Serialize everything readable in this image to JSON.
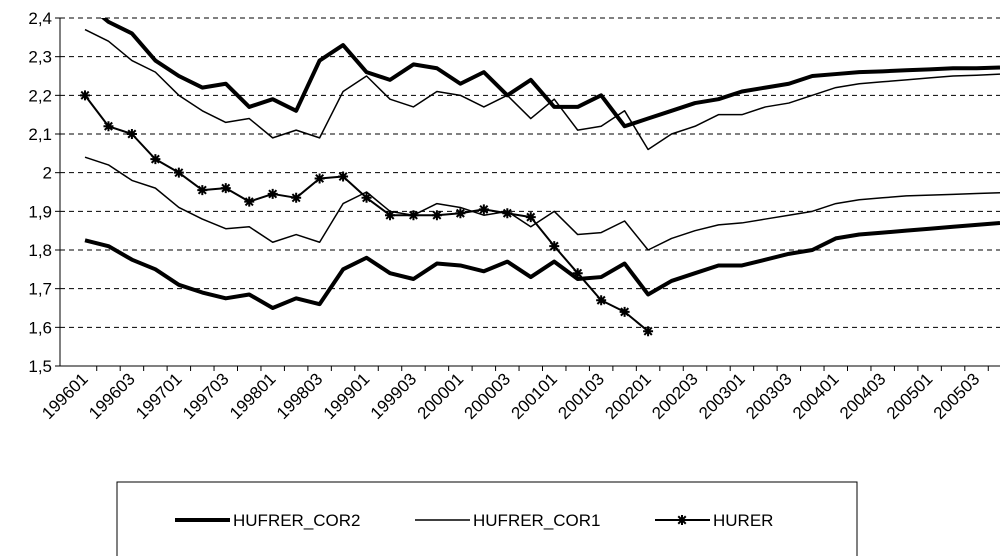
{
  "chart_data": {
    "type": "line",
    "categories": [
      "199601",
      null,
      "199603",
      null,
      "199701",
      null,
      "199703",
      null,
      "199801",
      null,
      "199803",
      null,
      "199901",
      null,
      "199903",
      null,
      "200001",
      null,
      "200003",
      null,
      "200101",
      null,
      "200103",
      null,
      "200201",
      null,
      "200203",
      null,
      "200301",
      null,
      "200303",
      null,
      "200401",
      null,
      "200403",
      null,
      "200501",
      null,
      "200503",
      null
    ],
    "ylim": [
      1.5,
      2.4
    ],
    "yticks": [
      {
        "value": 1.5,
        "label": "1,5"
      },
      {
        "value": 1.6,
        "label": "1,6"
      },
      {
        "value": 1.7,
        "label": "1,7"
      },
      {
        "value": 1.8,
        "label": "1,8"
      },
      {
        "value": 1.9,
        "label": "1,9"
      },
      2,
      {
        "value": 2.1,
        "label": "2,1"
      },
      {
        "value": 2.2,
        "label": "2,2"
      },
      {
        "value": 2.3,
        "label": "2,3"
      },
      {
        "value": 2.4,
        "label": "2,4"
      }
    ],
    "grid": true,
    "series": [
      {
        "name": "HUFRER_COR2",
        "color": "#000000",
        "width": 4,
        "marker": "none",
        "upper": [
          2.44,
          2.39,
          2.36,
          2.29,
          2.25,
          2.22,
          2.23,
          2.17,
          2.19,
          2.16,
          2.29,
          2.33,
          2.26,
          2.24,
          2.28,
          2.27,
          2.23,
          2.26,
          2.2,
          2.24,
          2.17,
          2.17,
          2.2,
          2.12,
          2.14,
          2.16,
          2.18,
          2.19,
          2.21,
          2.22,
          2.23,
          2.25,
          2.255,
          2.26,
          2.262,
          2.265,
          2.267,
          2.27,
          2.27,
          2.272
        ],
        "lower": [
          1.825,
          1.81,
          1.775,
          1.75,
          1.71,
          1.69,
          1.675,
          1.685,
          1.65,
          1.675,
          1.66,
          1.75,
          1.78,
          1.74,
          1.725,
          1.765,
          1.76,
          1.745,
          1.77,
          1.73,
          1.77,
          1.725,
          1.73,
          1.765,
          1.685,
          1.72,
          1.74,
          1.76,
          1.76,
          1.775,
          1.79,
          1.8,
          1.83,
          1.84,
          1.845,
          1.85,
          1.855,
          1.86,
          1.865,
          1.87
        ]
      },
      {
        "name": "HUFRER_COR1",
        "color": "#000000",
        "width": 1.5,
        "marker": "none",
        "upper": [
          2.37,
          2.34,
          2.29,
          2.26,
          2.2,
          2.16,
          2.13,
          2.14,
          2.09,
          2.11,
          2.09,
          2.21,
          2.25,
          2.19,
          2.17,
          2.21,
          2.2,
          2.17,
          2.2,
          2.14,
          2.19,
          2.11,
          2.12,
          2.16,
          2.06,
          2.1,
          2.12,
          2.15,
          2.15,
          2.17,
          2.18,
          2.2,
          2.22,
          2.23,
          2.235,
          2.24,
          2.245,
          2.25,
          2.252,
          2.255
        ],
        "lower": [
          2.04,
          2.02,
          1.98,
          1.96,
          1.91,
          1.88,
          1.855,
          1.86,
          1.82,
          1.84,
          1.82,
          1.92,
          1.95,
          1.9,
          1.89,
          1.92,
          1.91,
          1.89,
          1.9,
          1.86,
          1.9,
          1.84,
          1.845,
          1.875,
          1.8,
          1.83,
          1.85,
          1.865,
          1.87,
          1.88,
          1.89,
          1.9,
          1.92,
          1.93,
          1.935,
          1.94,
          1.942,
          1.944,
          1.946,
          1.948
        ]
      },
      {
        "name": "HURER",
        "color": "#000000",
        "width": 2,
        "marker": "star",
        "values": [
          2.2,
          2.12,
          2.1,
          2.035,
          2.0,
          1.955,
          1.96,
          1.925,
          1.945,
          1.935,
          1.985,
          1.99,
          1.935,
          1.89,
          1.89,
          1.89,
          1.895,
          1.905,
          1.895,
          1.885,
          1.81,
          1.74,
          1.67,
          1.64,
          1.59,
          null,
          null,
          null,
          null,
          null,
          null,
          null,
          null,
          null,
          null,
          null,
          null,
          null,
          null,
          null
        ]
      }
    ]
  }
}
